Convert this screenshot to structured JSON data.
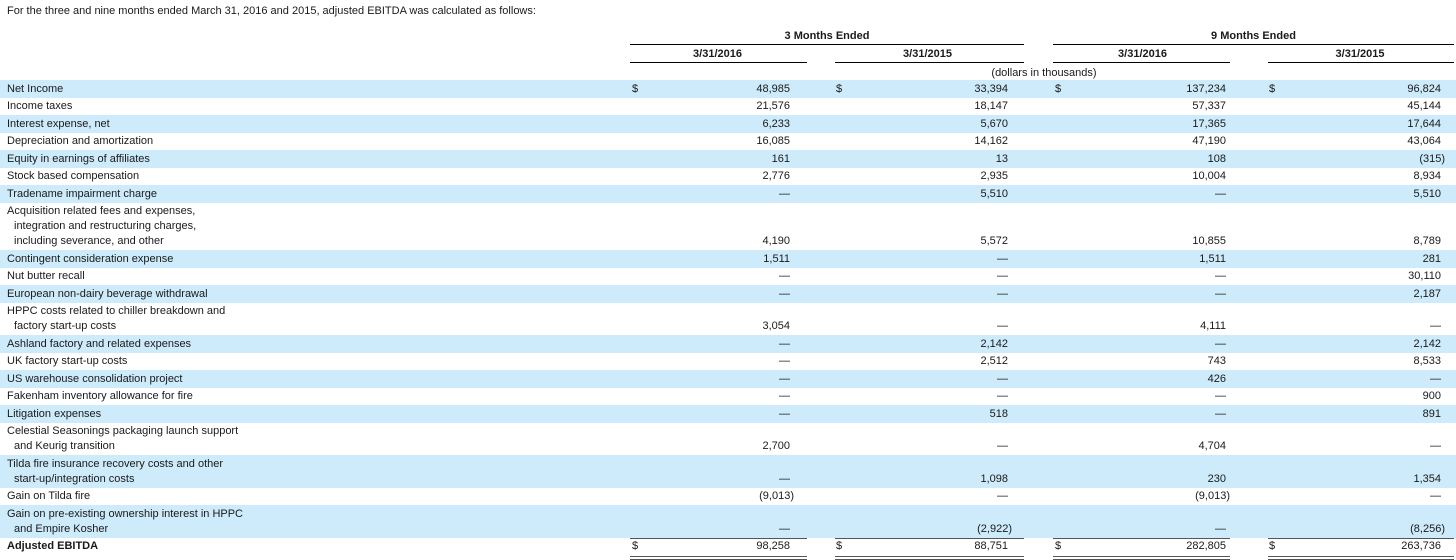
{
  "intro": "For the three and nine months ended March 31, 2016 and 2015, adjusted EBITDA was calculated as follows:",
  "header": {
    "group1": "3 Months Ended",
    "group2": "9 Months Ended",
    "col1": "3/31/2016",
    "col2": "3/31/2015",
    "col3": "3/31/2016",
    "col4": "3/31/2015",
    "unit": "(dollars in thousands)"
  },
  "currency_symbol": "$",
  "rows": [
    {
      "label": [
        "Net Income"
      ],
      "values": [
        "48,985",
        "33,394",
        "137,234",
        "96,824"
      ],
      "dollar": true,
      "shaded": true
    },
    {
      "label": [
        "Income taxes"
      ],
      "values": [
        "21,576",
        "18,147",
        "57,337",
        "45,144"
      ],
      "shaded": false
    },
    {
      "label": [
        "Interest expense, net"
      ],
      "values": [
        "6,233",
        "5,670",
        "17,365",
        "17,644"
      ],
      "shaded": true
    },
    {
      "label": [
        "Depreciation and amortization"
      ],
      "values": [
        "16,085",
        "14,162",
        "47,190",
        "43,064"
      ],
      "shaded": false
    },
    {
      "label": [
        "Equity in earnings of affiliates"
      ],
      "values": [
        "161",
        "13",
        "108",
        "(315)"
      ],
      "shaded": true
    },
    {
      "label": [
        "Stock based compensation"
      ],
      "values": [
        "2,776",
        "2,935",
        "10,004",
        "8,934"
      ],
      "shaded": false
    },
    {
      "label": [
        "Tradename impairment charge"
      ],
      "values": [
        "—",
        "5,510",
        "—",
        "5,510"
      ],
      "shaded": true
    },
    {
      "label": [
        "Acquisition related fees and expenses,",
        "integration and restructuring charges,",
        "including severance, and other"
      ],
      "values": [
        "4,190",
        "5,572",
        "10,855",
        "8,789"
      ],
      "shaded": false
    },
    {
      "label": [
        "Contingent consideration expense"
      ],
      "values": [
        "1,511",
        "—",
        "1,511",
        "281"
      ],
      "shaded": true
    },
    {
      "label": [
        "Nut butter recall"
      ],
      "values": [
        "—",
        "—",
        "—",
        "30,110"
      ],
      "shaded": false
    },
    {
      "label": [
        "European non-dairy beverage withdrawal"
      ],
      "values": [
        "—",
        "—",
        "—",
        "2,187"
      ],
      "shaded": true
    },
    {
      "label": [
        "HPPC costs related to chiller breakdown and",
        "factory start-up costs"
      ],
      "values": [
        "3,054",
        "—",
        "4,111",
        "—"
      ],
      "shaded": false
    },
    {
      "label": [
        "Ashland factory and related expenses"
      ],
      "values": [
        "—",
        "2,142",
        "—",
        "2,142"
      ],
      "shaded": true
    },
    {
      "label": [
        "UK factory start-up costs"
      ],
      "values": [
        "—",
        "2,512",
        "743",
        "8,533"
      ],
      "shaded": false
    },
    {
      "label": [
        "US warehouse consolidation project"
      ],
      "values": [
        "—",
        "—",
        "426",
        "—"
      ],
      "shaded": true
    },
    {
      "label": [
        "Fakenham inventory allowance for fire"
      ],
      "values": [
        "—",
        "—",
        "—",
        "900"
      ],
      "shaded": false
    },
    {
      "label": [
        "Litigation expenses"
      ],
      "values": [
        "—",
        "518",
        "—",
        "891"
      ],
      "shaded": true
    },
    {
      "label": [
        "Celestial Seasonings packaging launch support",
        "and Keurig transition"
      ],
      "values": [
        "2,700",
        "—",
        "4,704",
        "—"
      ],
      "shaded": false
    },
    {
      "label": [
        "Tilda fire insurance recovery costs and other",
        "start-up/integration costs"
      ],
      "values": [
        "—",
        "1,098",
        "230",
        "1,354"
      ],
      "shaded": true
    },
    {
      "label": [
        "Gain on Tilda fire"
      ],
      "values": [
        "(9,013)",
        "—",
        "(9,013)",
        "—"
      ],
      "shaded": false
    },
    {
      "label": [
        "Gain on pre-existing ownership interest in HPPC",
        "and Empire Kosher"
      ],
      "values": [
        "—",
        "(2,922)",
        "—",
        "(8,256)"
      ],
      "shaded": true
    },
    {
      "label": [
        "Adjusted EBITDA"
      ],
      "values": [
        "98,258",
        "88,751",
        "282,805",
        "263,736"
      ],
      "dollar": true,
      "shaded": false,
      "total": true
    }
  ]
}
